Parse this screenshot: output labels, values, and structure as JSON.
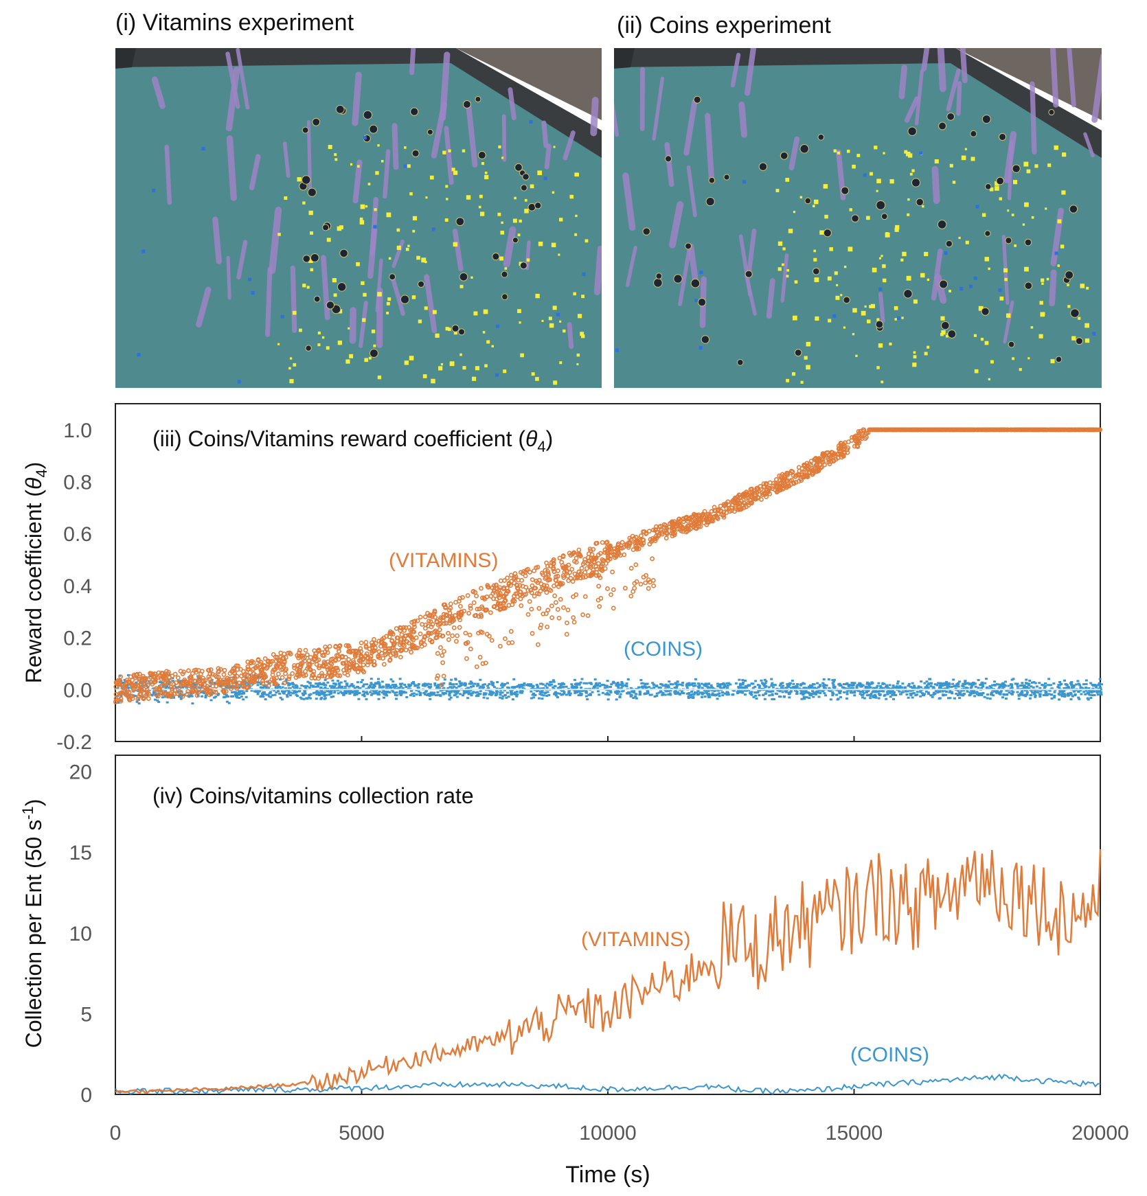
{
  "panels": {
    "vitamins_title": "(i) Vitamins experiment",
    "coins_title": "(ii) Coins experiment"
  },
  "colors": {
    "vitamins": "#e07b39",
    "coins": "#3b96cf",
    "floor": "#4f8a8e",
    "wall": "#3a3d40",
    "ground": "#6e6660",
    "post": "#9e85c6",
    "coin_dot": "#f5ef3a"
  },
  "chart_data": [
    {
      "type": "scatter",
      "title": "(iii) Coins/Vitamins reward coefficient (",
      "title_symbol": "θ",
      "title_sub": "4",
      "title_end": ")",
      "ylabel": "Reward coefficient (",
      "ylabel_symbol": "θ",
      "ylabel_sub": "4",
      "ylabel_end": ")",
      "xlim": [
        0,
        20000
      ],
      "ylim": [
        -0.2,
        1.1
      ],
      "yticks": [
        "-0.2",
        "0.0",
        "0.2",
        "0.4",
        "0.6",
        "0.8",
        "1.0"
      ],
      "ytick_values": [
        -0.2,
        0.0,
        0.2,
        0.4,
        0.6,
        0.8,
        1.0
      ],
      "series": [
        {
          "name": "(VITAMINS)",
          "x": [
            0,
            1000,
            2000,
            3000,
            4000,
            5000,
            6000,
            7000,
            8000,
            9000,
            10000,
            11000,
            12000,
            13000,
            14000,
            15000,
            15300,
            16000,
            17000,
            18000,
            19000,
            20000
          ],
          "y": [
            0.0,
            0.02,
            0.03,
            0.07,
            0.1,
            0.12,
            0.2,
            0.3,
            0.38,
            0.45,
            0.52,
            0.6,
            0.66,
            0.75,
            0.84,
            0.95,
            1.0,
            1.0,
            1.0,
            1.0,
            1.0,
            1.0
          ]
        },
        {
          "name": "(COINS)",
          "x": [
            0,
            5000,
            10000,
            15000,
            20000
          ],
          "y": [
            0.0,
            0.0,
            0.0,
            0.0,
            0.0
          ]
        }
      ]
    },
    {
      "type": "line",
      "title": "(iv) Coins/vitamins collection rate",
      "ylabel": "Collection per Ent (50 s",
      "ylabel_sup": "-1",
      "ylabel_end": ")",
      "xlabel": "Time (s)",
      "xlim": [
        0,
        20000
      ],
      "ylim": [
        0,
        21
      ],
      "yticks": [
        "0",
        "5",
        "10",
        "15",
        "20"
      ],
      "ytick_values": [
        0,
        5,
        10,
        15,
        20
      ],
      "xticks": [
        "0",
        "5000",
        "10000",
        "15000",
        "20000"
      ],
      "xtick_values": [
        0,
        5000,
        10000,
        15000,
        20000
      ],
      "series": [
        {
          "name": "(VITAMINS)",
          "x": [
            0,
            500,
            1000,
            1500,
            2000,
            2500,
            3000,
            3500,
            4000,
            4500,
            5000,
            5500,
            6000,
            6500,
            7000,
            7500,
            8000,
            8500,
            9000,
            9500,
            10000,
            10500,
            11000,
            11500,
            12000,
            12500,
            13000,
            13500,
            14000,
            14500,
            15000,
            15500,
            16000,
            16500,
            17000,
            17500,
            18000,
            18500,
            19000,
            19500,
            20000
          ],
          "y": [
            0.2,
            0.2,
            0.2,
            0.3,
            0.3,
            0.4,
            0.5,
            0.6,
            0.7,
            1.0,
            1.4,
            1.8,
            2.2,
            2.5,
            2.8,
            3.2,
            3.6,
            4.2,
            4.8,
            5.3,
            5.0,
            6.0,
            6.8,
            7.0,
            8.5,
            9.5,
            9.0,
            10.0,
            10.5,
            11.0,
            11.5,
            12.5,
            11.5,
            12.0,
            12.5,
            14.0,
            13.0,
            12.5,
            11.5,
            11.0,
            12.5
          ]
        },
        {
          "name": "(COINS)",
          "x": [
            0,
            1000,
            2000,
            3000,
            4000,
            5000,
            6000,
            7000,
            8000,
            9000,
            10000,
            11000,
            12000,
            13000,
            14000,
            15000,
            16000,
            17000,
            18000,
            19000,
            20000
          ],
          "y": [
            0.2,
            0.2,
            0.2,
            0.3,
            0.3,
            0.4,
            0.5,
            0.6,
            0.6,
            0.5,
            0.3,
            0.4,
            0.5,
            0.2,
            0.2,
            0.5,
            0.7,
            0.9,
            1.1,
            0.8,
            0.6
          ]
        }
      ]
    }
  ]
}
